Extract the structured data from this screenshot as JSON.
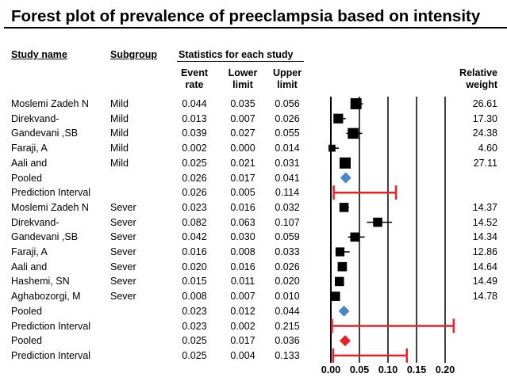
{
  "title": "Forest plot of prevalence of preeclampsia  based on intensity",
  "headers": {
    "study_name": "Study name",
    "subgroup": "Subgroup",
    "statistics": "Statistics for each study",
    "event_rate": "Event rate",
    "lower_limit": "Lower limit",
    "upper_limit": "Upper limit",
    "relative_weight": "Relative weight"
  },
  "chart_data": {
    "type": "forest",
    "title": "Forest plot of prevalence of preeclampsia  based on intensity",
    "xlim": [
      0.0,
      0.2
    ],
    "xticks": [
      "0.00",
      "0.05",
      "0.10",
      "0.15",
      "0.20"
    ],
    "rows": [
      {
        "study": "Moslemi Zadeh N",
        "subgroup": "Mild",
        "rate": "0.044",
        "lower": "0.035",
        "upper": "0.056",
        "weight": "26.61",
        "kind": "study",
        "er": 0.044,
        "ll": 0.035,
        "ul": 0.056,
        "w": 26.61
      },
      {
        "study": "Direkvand-",
        "subgroup": "Mild",
        "rate": "0.013",
        "lower": "0.007",
        "upper": "0.026",
        "weight": "17.30",
        "kind": "study",
        "er": 0.013,
        "ll": 0.007,
        "ul": 0.026,
        "w": 17.3
      },
      {
        "study": "Gandevani ,SB",
        "subgroup": "Mild",
        "rate": "0.039",
        "lower": "0.027",
        "upper": "0.055",
        "weight": "24.38",
        "kind": "study",
        "er": 0.039,
        "ll": 0.027,
        "ul": 0.055,
        "w": 24.38
      },
      {
        "study": "Faraji, A",
        "subgroup": "Mild",
        "rate": "0.002",
        "lower": "0.000",
        "upper": "0.014",
        "weight": "4.60",
        "kind": "study",
        "er": 0.002,
        "ll": 0.0,
        "ul": 0.014,
        "w": 4.6
      },
      {
        "study": "Aali and",
        "subgroup": "Mild",
        "rate": "0.025",
        "lower": "0.021",
        "upper": "0.031",
        "weight": "27.11",
        "kind": "study",
        "er": 0.025,
        "ll": 0.021,
        "ul": 0.031,
        "w": 27.11
      },
      {
        "study": "Pooled",
        "subgroup": "",
        "rate": "0.026",
        "lower": "0.017",
        "upper": "0.041",
        "weight": "",
        "kind": "pooled",
        "er": 0.026,
        "ll": 0.017,
        "ul": 0.041,
        "color": "#4a86c8"
      },
      {
        "study": "Prediction Interval",
        "subgroup": "",
        "rate": "0.026",
        "lower": "0.005",
        "upper": "0.114",
        "weight": "",
        "kind": "pi",
        "er": 0.026,
        "ll": 0.005,
        "ul": 0.114
      },
      {
        "study": "Moslemi Zadeh N",
        "subgroup": "Sever",
        "rate": "0.023",
        "lower": "0.016",
        "upper": "0.032",
        "weight": "14.37",
        "kind": "study",
        "er": 0.023,
        "ll": 0.016,
        "ul": 0.032,
        "w": 14.37
      },
      {
        "study": "Direkvand-",
        "subgroup": "Sever",
        "rate": "0.082",
        "lower": "0.063",
        "upper": "0.107",
        "weight": "14.52",
        "kind": "study",
        "er": 0.082,
        "ll": 0.063,
        "ul": 0.107,
        "w": 14.52
      },
      {
        "study": "Gandevani ,SB",
        "subgroup": "Sever",
        "rate": "0.042",
        "lower": "0.030",
        "upper": "0.059",
        "weight": "14.34",
        "kind": "study",
        "er": 0.042,
        "ll": 0.03,
        "ul": 0.059,
        "w": 14.34
      },
      {
        "study": "Faraji, A",
        "subgroup": "Sever",
        "rate": "0.016",
        "lower": "0.008",
        "upper": "0.033",
        "weight": "12.86",
        "kind": "study",
        "er": 0.016,
        "ll": 0.008,
        "ul": 0.033,
        "w": 12.86
      },
      {
        "study": "Aali and",
        "subgroup": "Sever",
        "rate": "0.020",
        "lower": "0.016",
        "upper": "0.026",
        "weight": "14.64",
        "kind": "study",
        "er": 0.02,
        "ll": 0.016,
        "ul": 0.026,
        "w": 14.64
      },
      {
        "study": "Hashemi, SN",
        "subgroup": "Sever",
        "rate": "0.015",
        "lower": "0.011",
        "upper": "0.020",
        "weight": "14.49",
        "kind": "study",
        "er": 0.015,
        "ll": 0.011,
        "ul": 0.02,
        "w": 14.49
      },
      {
        "study": "Aghabozorgi, M",
        "subgroup": "Sever",
        "rate": "0.008",
        "lower": "0.007",
        "upper": "0.010",
        "weight": "14.78",
        "kind": "study",
        "er": 0.008,
        "ll": 0.007,
        "ul": 0.01,
        "w": 14.78
      },
      {
        "study": "Pooled",
        "subgroup": "",
        "rate": "0.023",
        "lower": "0.012",
        "upper": "0.044",
        "weight": "",
        "kind": "pooled",
        "er": 0.023,
        "ll": 0.012,
        "ul": 0.044,
        "color": "#4a86c8"
      },
      {
        "study": "Prediction Interval",
        "subgroup": "",
        "rate": "0.023",
        "lower": "0.002",
        "upper": "0.215",
        "weight": "",
        "kind": "pi",
        "er": 0.023,
        "ll": 0.002,
        "ul": 0.215
      },
      {
        "study": "Pooled",
        "subgroup": "",
        "rate": "0.025",
        "lower": "0.017",
        "upper": "0.036",
        "weight": "",
        "kind": "pooled",
        "er": 0.025,
        "ll": 0.017,
        "ul": 0.036,
        "color": "#e8202a"
      },
      {
        "study": "Prediction Interval",
        "subgroup": "",
        "rate": "0.025",
        "lower": "0.004",
        "upper": "0.133",
        "weight": "",
        "kind": "pi",
        "er": 0.025,
        "ll": 0.004,
        "ul": 0.133
      }
    ]
  },
  "colors": {
    "square": "#000000",
    "pi": "#e8202a",
    "pooled_subgroup": "#4a86c8",
    "pooled_overall": "#e8202a"
  }
}
